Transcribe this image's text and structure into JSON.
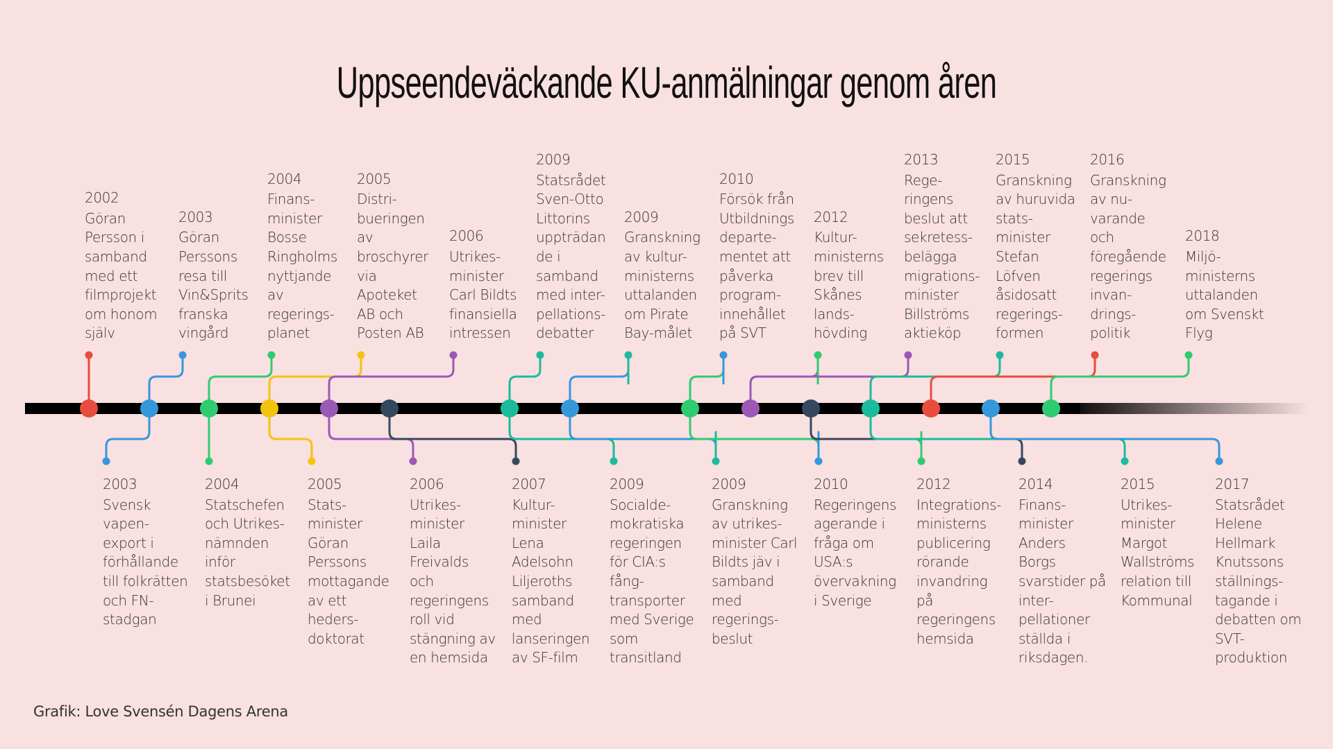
{
  "title": "Uppseendeväckande KU-anmälningar genom åren",
  "credit": "Grafik: Love Svensén Dagens Arena",
  "colors": {
    "red": "#e74c3c",
    "blue": "#3498db",
    "green": "#2ecc71",
    "yellow": "#f1c40f",
    "purple": "#9b59b6",
    "dark": "#34495e",
    "teal": "#1abc9c",
    "timeline": "#000000",
    "background": "#f9e0e1"
  },
  "nodes": [
    {
      "id": "n1",
      "color": "red"
    },
    {
      "id": "n2",
      "color": "blue"
    },
    {
      "id": "n3",
      "color": "green"
    },
    {
      "id": "n4",
      "color": "yellow"
    },
    {
      "id": "n5",
      "color": "purple"
    },
    {
      "id": "n6",
      "color": "dark"
    },
    {
      "id": "n7",
      "color": "teal"
    },
    {
      "id": "n8",
      "color": "blue"
    },
    {
      "id": "n9",
      "color": "green"
    },
    {
      "id": "n10",
      "color": "purple"
    },
    {
      "id": "n11",
      "color": "dark"
    },
    {
      "id": "n12",
      "color": "teal"
    },
    {
      "id": "n13",
      "color": "red"
    },
    {
      "id": "n14",
      "color": "blue"
    },
    {
      "id": "n15",
      "color": "green"
    }
  ],
  "events_upper": [
    {
      "year": "2002",
      "lines": [
        "Göran",
        "Persson i",
        "samband",
        "med ett",
        "filmprojekt",
        "om honom",
        "själv"
      ],
      "dot_color": "red",
      "node": "n1"
    },
    {
      "year": "2003",
      "lines": [
        "Göran",
        "Perssons",
        "resa till",
        "Vin&Sprits",
        "franska",
        "vingård"
      ],
      "dot_color": "blue",
      "node": "n2"
    },
    {
      "year": "2004",
      "lines": [
        "Finans-",
        "minister",
        "Bosse",
        "Ringholms",
        "nyttjande",
        "av",
        "regerings-",
        "planet"
      ],
      "dot_color": "green",
      "node": "n3"
    },
    {
      "year": "2005",
      "lines": [
        "Distri-",
        "bueringen",
        "av",
        "broschyrer",
        "via",
        "Apoteket",
        "AB och",
        "Posten AB"
      ],
      "dot_color": "yellow",
      "node": "n4"
    },
    {
      "year": "2006",
      "lines": [
        "Utrikes-",
        "minister",
        "Carl Bildts",
        "finansiella",
        "intressen"
      ],
      "dot_color": "purple",
      "node": "n5"
    },
    {
      "year": "2009",
      "lines": [
        "Statsrådet",
        "Sven-Otto",
        "Littorins",
        "uppträdan",
        "de i",
        "samband",
        "med inter-",
        "pellations-",
        "debatter"
      ],
      "dot_color": "teal",
      "node": "n7"
    },
    {
      "year": "2009",
      "lines": [
        "Granskning",
        "av kultur-",
        "ministerns",
        "uttalanden",
        "om Pirate",
        "Bay-målet"
      ],
      "dot_color": "teal",
      "node": "n8"
    },
    {
      "year": "2010",
      "lines": [
        "Försök från",
        "Utbildnings",
        "departe-",
        "mentet att",
        "påverka",
        "program-",
        "innehållet",
        "på SVT"
      ],
      "dot_color": "blue",
      "node": "n9"
    },
    {
      "year": "2012",
      "lines": [
        "Kultur-",
        "ministerns",
        "brev till",
        "Skånes",
        "lands-",
        "hövding"
      ],
      "dot_color": "green",
      "node": "n10"
    },
    {
      "year": "2013",
      "lines": [
        "Rege-",
        "ringens",
        "beslut att",
        "sekretess-",
        "belägga",
        "migrations-",
        "minister",
        "Billströms",
        "aktieköp"
      ],
      "dot_color": "purple",
      "node": "n12"
    },
    {
      "year": "2015",
      "lines": [
        "Granskning",
        "av huruvida",
        "stats-",
        "minister",
        "Stefan",
        "Löfven",
        "åsidosatt",
        "regerings-",
        "formen"
      ],
      "dot_color": "teal",
      "node": "n13"
    },
    {
      "year": "2016",
      "lines": [
        "Granskning",
        "av nu-",
        "varande",
        "och",
        "föregående",
        "regerings",
        "invan-",
        "drings-",
        "politik"
      ],
      "dot_color": "red",
      "node": "n15"
    },
    {
      "year": "2018",
      "lines": [
        "Miljö-",
        "ministerns",
        "uttalanden",
        "om Svenskt",
        "Flyg"
      ],
      "dot_color": "green",
      "node": "n15"
    }
  ],
  "events_lower": [
    {
      "year": "2003",
      "lines": [
        "Svensk",
        "vapen-",
        "export i",
        "förhållande",
        "till folkrätten",
        "och FN-",
        "stadgan"
      ],
      "dot_color": "blue",
      "node": "n2"
    },
    {
      "year": "2004",
      "lines": [
        "Statschefen",
        "och Utrikes-",
        "nämnden",
        "inför",
        "statsbesöket",
        "i Brunei"
      ],
      "dot_color": "green",
      "node": "n3"
    },
    {
      "year": "2005",
      "lines": [
        "Stats-",
        "minister",
        "Göran",
        "Perssons",
        "mottagande",
        "av ett",
        "heders-",
        "doktorat"
      ],
      "dot_color": "yellow",
      "node": "n4"
    },
    {
      "year": "2006",
      "lines": [
        "Utrikes-",
        "minister",
        "Laila",
        "Freivalds",
        "och",
        "regeringens",
        "roll vid",
        "stängning av",
        "en hemsida"
      ],
      "dot_color": "purple",
      "node": "n5"
    },
    {
      "year": "2007",
      "lines": [
        "Kultur-",
        "minister",
        "Lena",
        "Adelsohn",
        "Liljeroths",
        "samband",
        "med",
        "lanseringen",
        "av SF-film"
      ],
      "dot_color": "dark",
      "node": "n6"
    },
    {
      "year": "2009",
      "lines": [
        "Socialde-",
        "mokratiska",
        "regeringen",
        "för CIA:s",
        "fång-",
        "transporter",
        "med Sverige",
        "som",
        "transitland"
      ],
      "dot_color": "teal",
      "node": "n7"
    },
    {
      "year": "2009",
      "lines": [
        "Granskning",
        "av utrikes-",
        "minister Carl",
        "Bildts jäv i",
        "samband",
        "med",
        "regerings-",
        "beslut"
      ],
      "dot_color": "teal",
      "node": "n8"
    },
    {
      "year": "2010",
      "lines": [
        "Regeringens",
        "agerande i",
        "fråga om",
        "USA:s",
        "övervakning",
        "i Sverige"
      ],
      "dot_color": "blue",
      "node": "n9"
    },
    {
      "year": "2012",
      "lines": [
        "Integrations-",
        "ministerns",
        "publicering",
        "rörande",
        "invandring",
        "på",
        "regeringens",
        "hemsida"
      ],
      "dot_color": "green",
      "node": "n11"
    },
    {
      "year": "2014",
      "lines": [
        "Finans-",
        "minister",
        "Anders",
        "Borgs",
        "svarstider på",
        "inter-",
        "pellationer",
        "ställda i",
        "riksdagen."
      ],
      "dot_color": "dark",
      "node": "n11"
    },
    {
      "year": "2015",
      "lines": [
        "Utrikes-",
        "minister",
        "Margot",
        "Wallströms",
        "relation till",
        "Kommunal"
      ],
      "dot_color": "teal",
      "node": "n12"
    },
    {
      "year": "2017",
      "lines": [
        "Statsrådet",
        "Helene",
        "Hellmark",
        "Knutssons",
        "ställnings-",
        "tagande i",
        "debatten om",
        "SVT-",
        "produktion"
      ],
      "dot_color": "blue",
      "node": "n14"
    }
  ]
}
